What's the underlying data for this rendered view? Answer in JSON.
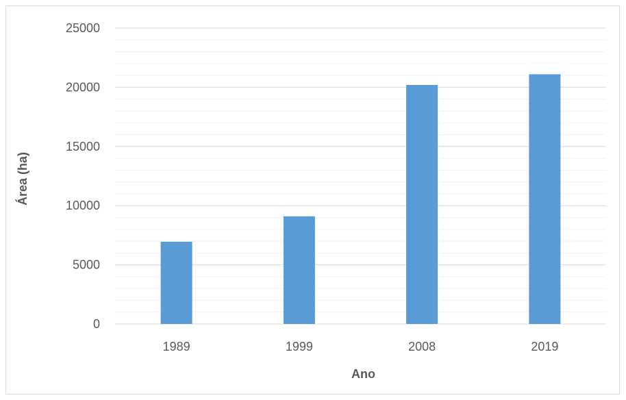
{
  "chart_data": {
    "type": "bar",
    "title": "",
    "xlabel": "Ano",
    "ylabel": "Área (ha)",
    "categories": [
      "1989",
      "1999",
      "2008",
      "2019"
    ],
    "values": [
      6950,
      9100,
      20200,
      21100
    ],
    "ylim": [
      0,
      25000
    ],
    "yticks": [
      "0",
      "5000",
      "10000",
      "15000",
      "20000",
      "25000"
    ],
    "minor_gridlines": true,
    "legend": "none",
    "bar_color": "#5b9bd5",
    "gridline_color": "#d9d9d9"
  }
}
